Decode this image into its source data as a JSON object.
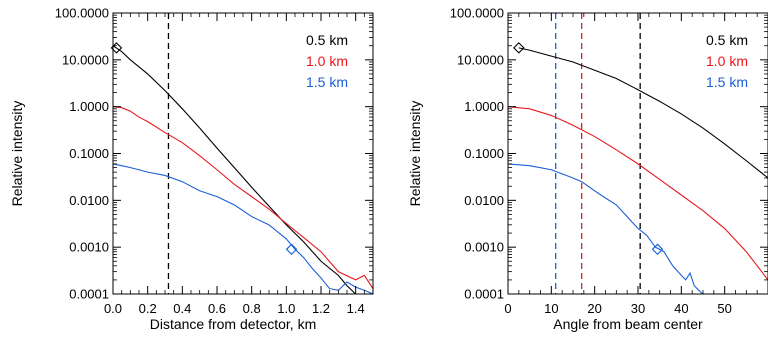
{
  "chart_data": [
    {
      "type": "line",
      "xlabel": "Distance from detector, km",
      "ylabel": "Relative intensity",
      "xlim": [
        0.0,
        1.5
      ],
      "ylim": [
        0.0001,
        100
      ],
      "yscale": "log",
      "grid": false,
      "legend_position": "top-right",
      "x_ticks": [
        0.0,
        0.2,
        0.4,
        0.6,
        0.8,
        1.0,
        1.2,
        1.4
      ],
      "x_tick_labels": [
        "0.0",
        "0.2",
        "0.4",
        "0.6",
        "0.8",
        "1.0",
        "1.2",
        "1.4"
      ],
      "y_ticks": [
        0.0001,
        0.001,
        0.01,
        0.1,
        1,
        10,
        100
      ],
      "y_tick_labels": [
        "0.0001",
        "0.0010",
        "0.0100",
        "0.1000",
        "1.0000",
        "10.0000",
        "100.0000"
      ],
      "series": [
        {
          "name": "0.5 km",
          "color": "#000000",
          "x": [
            0.0,
            0.05,
            0.1,
            0.2,
            0.3,
            0.4,
            0.5,
            0.6,
            0.7,
            0.8,
            0.9,
            1.0,
            1.1,
            1.2,
            1.3,
            1.35,
            1.4,
            1.45
          ],
          "y": [
            20,
            15,
            10,
            5,
            2.2,
            0.9,
            0.35,
            0.13,
            0.05,
            0.019,
            0.0075,
            0.003,
            0.0013,
            0.0005,
            0.00025,
            0.00015,
            0.0001,
            0.0001
          ]
        },
        {
          "name": "1.0 km",
          "color": "#e8191c",
          "x": [
            0.0,
            0.05,
            0.1,
            0.15,
            0.2,
            0.3,
            0.4,
            0.5,
            0.6,
            0.7,
            0.8,
            0.9,
            1.0,
            1.1,
            1.2,
            1.3,
            1.4,
            1.45,
            1.5
          ],
          "y": [
            1.0,
            0.95,
            0.8,
            0.6,
            0.48,
            0.28,
            0.17,
            0.09,
            0.045,
            0.022,
            0.012,
            0.0065,
            0.0032,
            0.0016,
            0.0008,
            0.0003,
            0.0002,
            0.00025,
            0.00013
          ]
        },
        {
          "name": "1.5 km",
          "color": "#1a5fd6",
          "x": [
            0.0,
            0.05,
            0.1,
            0.15,
            0.2,
            0.3,
            0.4,
            0.5,
            0.6,
            0.7,
            0.8,
            0.9,
            1.0,
            1.05,
            1.1,
            1.15,
            1.2,
            1.25,
            1.3,
            1.35,
            1.4,
            1.45,
            1.5
          ],
          "y": [
            0.06,
            0.055,
            0.05,
            0.045,
            0.04,
            0.034,
            0.025,
            0.016,
            0.012,
            0.008,
            0.0045,
            0.003,
            0.0015,
            0.0009,
            0.0006,
            0.00035,
            0.00022,
            0.00013,
            0.00012,
            0.00018,
            0.00014,
            0.00012,
            0.0001
          ]
        }
      ],
      "markers": [
        {
          "series": "0.5 km",
          "x": 0.02,
          "y": 18,
          "color": "#000000"
        },
        {
          "series": "1.5 km",
          "x": 1.03,
          "y": 0.0009,
          "color": "#1a5fd6"
        }
      ],
      "vlines": [
        {
          "x": 0.32,
          "color": "#000000"
        }
      ]
    },
    {
      "type": "line",
      "xlabel": "Angle from beam center",
      "ylabel": "Relative intensity",
      "xlim": [
        0,
        60
      ],
      "ylim": [
        0.0001,
        100
      ],
      "yscale": "log",
      "grid": false,
      "legend_position": "top-right",
      "x_ticks": [
        0,
        10,
        20,
        30,
        40,
        50
      ],
      "x_tick_labels": [
        "0",
        "10",
        "20",
        "30",
        "40",
        "50"
      ],
      "y_ticks": [
        0.0001,
        0.001,
        0.01,
        0.1,
        1,
        10,
        100
      ],
      "y_tick_labels": [
        "0.0001",
        "0.0010",
        "0.0100",
        "0.1000",
        "1.0000",
        "10.0000",
        "100.0000"
      ],
      "series": [
        {
          "name": "0.5 km",
          "color": "#000000",
          "x": [
            2.5,
            5,
            10,
            15,
            20,
            25,
            30,
            35,
            40,
            45,
            50,
            55,
            60
          ],
          "y": [
            18,
            16,
            12,
            9,
            6,
            4,
            2.3,
            1.3,
            0.7,
            0.35,
            0.16,
            0.07,
            0.03
          ]
        },
        {
          "name": "1.0 km",
          "color": "#e8191c",
          "x": [
            0,
            5,
            10,
            15,
            20,
            25,
            30,
            35,
            40,
            45,
            50,
            55,
            60
          ],
          "y": [
            1.0,
            0.9,
            0.65,
            0.4,
            0.23,
            0.12,
            0.06,
            0.028,
            0.013,
            0.006,
            0.0025,
            0.0008,
            0.0002
          ]
        },
        {
          "name": "1.5 km",
          "color": "#1a5fd6",
          "x": [
            0,
            5,
            10,
            15,
            17,
            20,
            22,
            25,
            28,
            30,
            32,
            34,
            36,
            38,
            40,
            41,
            42,
            43,
            44,
            45
          ],
          "y": [
            0.06,
            0.055,
            0.045,
            0.03,
            0.025,
            0.016,
            0.012,
            0.008,
            0.004,
            0.0025,
            0.0018,
            0.001,
            0.0008,
            0.0004,
            0.00025,
            0.0002,
            0.00028,
            0.00015,
            0.00012,
            0.0001
          ]
        }
      ],
      "markers": [
        {
          "series": "0.5 km",
          "x": 2.5,
          "y": 18,
          "color": "#000000"
        },
        {
          "series": "1.5 km",
          "x": 34.5,
          "y": 0.0009,
          "color": "#1a5fd6"
        }
      ],
      "vlines": [
        {
          "x": 11,
          "color": "#1a5fd6"
        },
        {
          "x": 17,
          "color": "#e8191c"
        },
        {
          "x": 30.5,
          "color": "#000000"
        }
      ]
    }
  ]
}
